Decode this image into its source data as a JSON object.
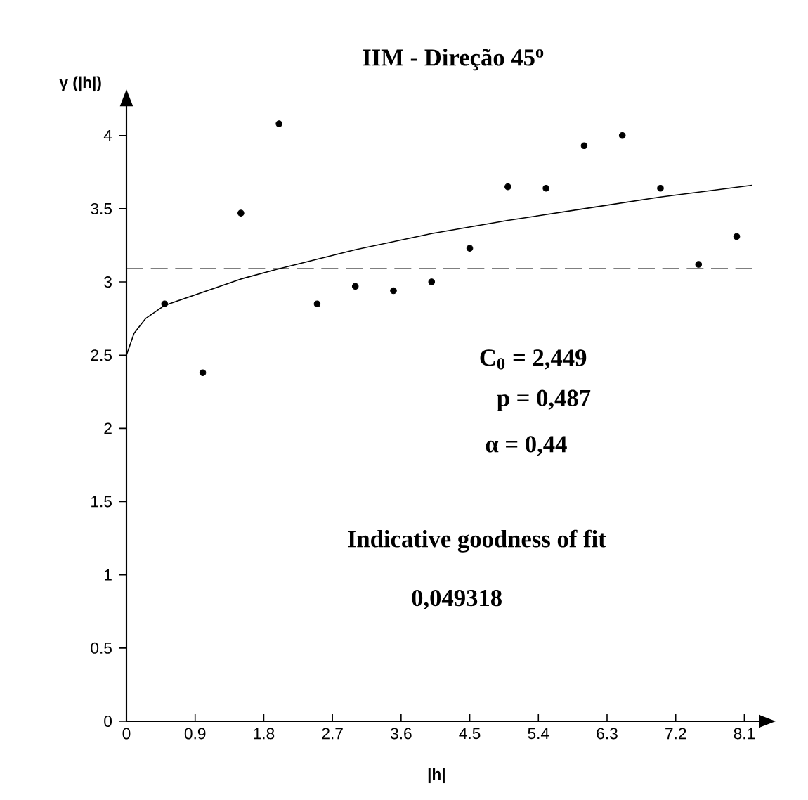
{
  "chart_data": {
    "type": "scatter",
    "title": "IIM - Direção 45$^{o}$",
    "xlabel": "|h|",
    "ylabel": "γ (|h|)",
    "xlim": [
      0,
      8.4
    ],
    "ylim": [
      0,
      4.25
    ],
    "xticks": [
      0,
      0.9,
      1.8,
      2.7,
      3.6,
      4.5,
      5.4,
      6.3,
      7.2,
      8.1
    ],
    "yticks": [
      0,
      0.5,
      1,
      1.5,
      2,
      2.5,
      3,
      3.5,
      4
    ],
    "grid": false,
    "series": [
      {
        "type": "scatter",
        "color": "#000000",
        "marker": "circle",
        "x": [
          0.5,
          1.0,
          1.5,
          2.0,
          2.5,
          3.0,
          3.5,
          4.0,
          4.5,
          5.0,
          5.5,
          6.0,
          6.5,
          7.0,
          7.5,
          8.0
        ],
        "values": [
          2.85,
          2.38,
          3.47,
          4.08,
          2.85,
          2.97,
          2.94,
          3.0,
          3.23,
          3.65,
          3.64,
          3.93,
          4.0,
          3.64,
          3.12,
          3.31
        ]
      },
      {
        "type": "line",
        "color": "#000000",
        "marker": "none",
        "line_style": "solid",
        "x": [
          0,
          0.1,
          0.25,
          0.5,
          1,
          1.5,
          2,
          3,
          4,
          5,
          6,
          7,
          8.2
        ],
        "values": [
          2.5,
          2.65,
          2.75,
          2.84,
          2.93,
          3.02,
          3.09,
          3.22,
          3.33,
          3.42,
          3.5,
          3.58,
          3.66
        ]
      }
    ],
    "ref_lines": [
      {
        "axis": "y",
        "value": 3.09,
        "color": "#000000",
        "line_style": "dashed"
      }
    ],
    "annotations": [
      "C$_{0}$ = 2,449",
      "p  = 0,487",
      "α = 0,44",
      "Indicative goodness of fit",
      "0,049318"
    ]
  }
}
